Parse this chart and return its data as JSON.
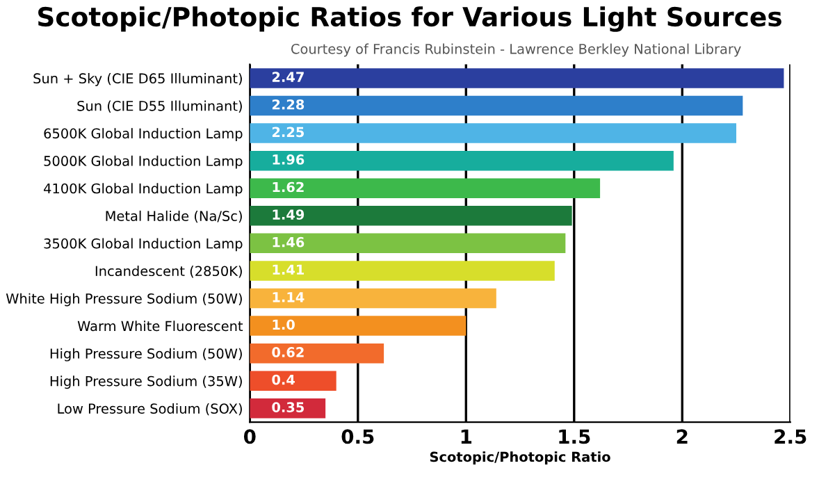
{
  "chart_data": {
    "type": "bar",
    "orientation": "horizontal",
    "title": "Scotopic/Photopic Ratios for Various Light Sources",
    "annotations": [
      "Courtesy of Francis Rubinstein - Lawrence Berkley National Library"
    ],
    "xlabel": "Scotopic/Photopic Ratio",
    "categories": [
      "Sun + Sky (CIE D65 Illuminant)",
      "Sun (CIE D55 Illuminant)",
      "6500K Global Induction Lamp",
      "5000K Global Induction Lamp",
      "4100K Global Induction Lamp",
      "Metal Halide (Na/Sc)",
      "3500K Global Induction Lamp",
      "Incandescent (2850K)",
      "White High Pressure Sodium (50W)",
      "Warm White Fluorescent",
      "High Pressure Sodium (50W)",
      "High Pressure Sodium (35W)",
      "Low Pressure Sodium (SOX)"
    ],
    "values": [
      2.47,
      2.28,
      2.25,
      1.96,
      1.62,
      1.49,
      1.46,
      1.41,
      1.14,
      1.0,
      0.62,
      0.4,
      0.35
    ],
    "value_labels": [
      "2.47",
      "2.28",
      "2.25",
      "1.96",
      "1.62",
      "1.49",
      "1.46",
      "1.41",
      "1.14",
      "1.0",
      "0.62",
      "0.4",
      "0.35"
    ],
    "colors": [
      "#2b3f9f",
      "#2e7fca",
      "#4fb4e6",
      "#17ad9d",
      "#3db94b",
      "#1c7a3b",
      "#7cc243",
      "#d7de2b",
      "#f8b33c",
      "#f3901f",
      "#f26b2c",
      "#ee4e2a",
      "#d22a3b"
    ],
    "xlim": [
      0,
      2.5
    ],
    "xticks": [
      0,
      0.5,
      1,
      1.5,
      2,
      2.5
    ],
    "grid": "x"
  }
}
